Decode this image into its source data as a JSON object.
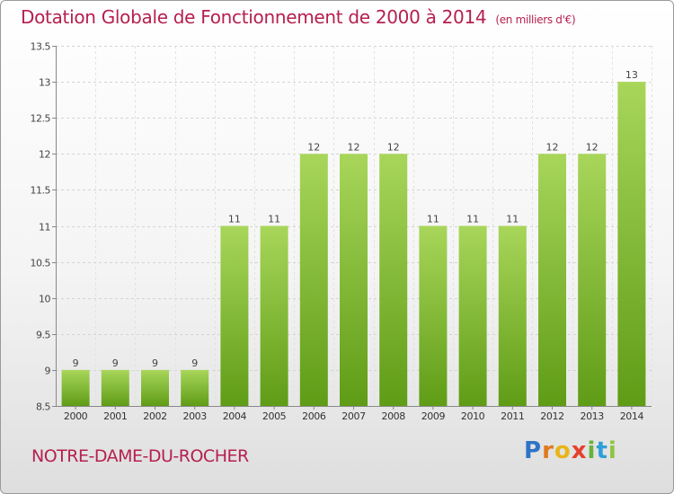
{
  "header": {
    "title": "Dotation Globale de Fonctionnement de 2000 à 2014",
    "unit": "(en milliers d'€)"
  },
  "footer": {
    "commune": "NOTRE-DAME-DU-ROCHER",
    "logo": [
      "P",
      "r",
      "o",
      "x",
      "i",
      "t",
      "i"
    ]
  },
  "colors": {
    "title": "#b5204f",
    "bar_light": "#a8d65a",
    "bar_dark": "#5f9c16",
    "logo": [
      "#2e74c8",
      "#e07a1f",
      "#e8b51a",
      "#e6402c",
      "#67b33a",
      "#2e9fd8",
      "#8cc63f"
    ]
  },
  "chart_data": {
    "type": "bar",
    "title": "Dotation Globale de Fonctionnement de 2000 à 2014",
    "ylabel": "en milliers d'€",
    "xlabel": "",
    "grid": true,
    "categories": [
      "2000",
      "2001",
      "2002",
      "2003",
      "2004",
      "2005",
      "2006",
      "2007",
      "2008",
      "2009",
      "2010",
      "2011",
      "2012",
      "2013",
      "2014"
    ],
    "values": [
      9,
      9,
      9,
      9,
      11,
      11,
      12,
      12,
      12,
      11,
      11,
      11,
      12,
      12,
      13
    ],
    "data_labels": [
      "9",
      "9",
      "9",
      "9",
      "11",
      "11",
      "12",
      "12",
      "12",
      "11",
      "11",
      "11",
      "12",
      "12",
      "13"
    ],
    "ylim": [
      8.5,
      13.5
    ],
    "yticks": [
      8.5,
      9,
      9.5,
      10,
      10.5,
      11,
      11.5,
      12,
      12.5,
      13,
      13.5
    ],
    "ytick_labels": [
      "8.5",
      "9",
      "9.5",
      "10",
      "10.5",
      "11",
      "11.5",
      "12",
      "12.5",
      "13",
      "13.5"
    ]
  }
}
